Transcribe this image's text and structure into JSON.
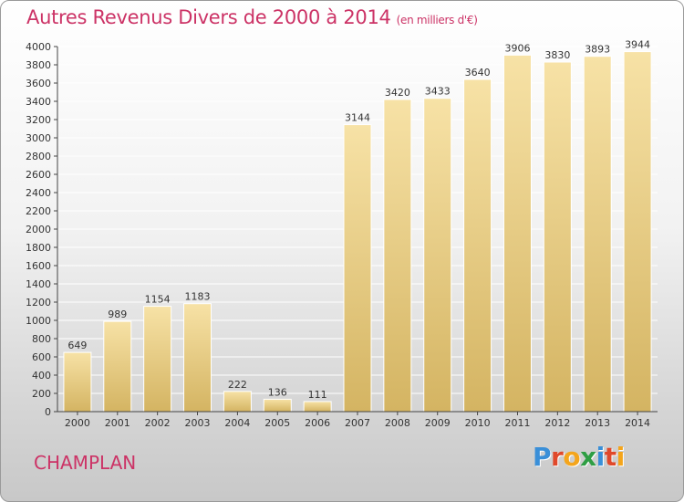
{
  "header": {
    "title": "Autres Revenus Divers de 2000 à 2014",
    "unit": "(en milliers d'€)"
  },
  "footer": {
    "city": "CHAMPLAN",
    "logo_letters": [
      "P",
      "r",
      "o",
      "x",
      "i",
      "t",
      "i"
    ],
    "logo_text": "Proxiti",
    "logo_colors": [
      "#3a8fd8",
      "#e0492b",
      "#f4a51c",
      "#2f9e44",
      "#3a8fd8",
      "#e0492b",
      "#f4a51c"
    ]
  },
  "colors": {
    "title": "#cc3366",
    "bar_light": "#f6dfa1",
    "bar_dark": "#d7b767",
    "grid": "#ffffff",
    "axis": "#444444"
  },
  "chart_data": {
    "type": "bar",
    "title": "Autres Revenus Divers de 2000 à 2014",
    "subtitle": "(en milliers d'€)",
    "categories": [
      "2000",
      "2001",
      "2002",
      "2003",
      "2004",
      "2005",
      "2006",
      "2007",
      "2008",
      "2009",
      "2010",
      "2011",
      "2012",
      "2013",
      "2014"
    ],
    "values": [
      649,
      989,
      1154,
      1183,
      222,
      136,
      111,
      3144,
      3420,
      3433,
      3640,
      3906,
      3830,
      3893,
      3944
    ],
    "ylim": [
      0,
      4000
    ],
    "ytick_step": 200,
    "grid": true,
    "legend": "none",
    "xlabel": "",
    "ylabel": ""
  }
}
